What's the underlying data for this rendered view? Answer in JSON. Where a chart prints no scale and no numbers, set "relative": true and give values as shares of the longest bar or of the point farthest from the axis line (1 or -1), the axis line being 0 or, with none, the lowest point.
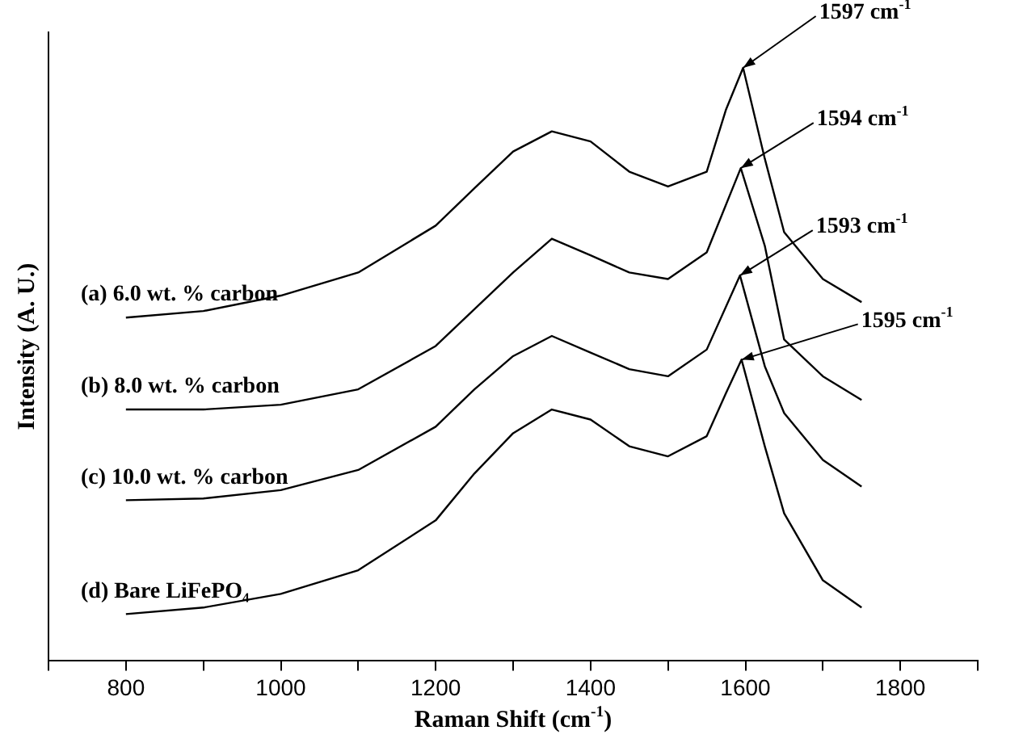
{
  "chart_data": {
    "type": "line",
    "relative": true,
    "xlabel": "Raman Shift (cm$^{-1}$)",
    "ylabel": "Intensity (A. U.)",
    "xlim": [
      700,
      1900
    ],
    "xticks": [
      {
        "value": 700,
        "label": null
      },
      800,
      {
        "value": 900,
        "label": null
      },
      1000,
      {
        "value": 1100,
        "label": null
      },
      1200,
      {
        "value": 1300,
        "label": null
      },
      1400,
      {
        "value": 1500,
        "label": null
      },
      1600,
      {
        "value": 1700,
        "label": null
      },
      1800,
      {
        "value": 1900,
        "label": null
      }
    ],
    "grid": false,
    "legend": false,
    "marker": "none",
    "series": [
      {
        "name": "(a) 6.0 wt. % carbon",
        "color": "#000000",
        "x": [
          800,
          900,
          1000,
          1100,
          1200,
          1250,
          1300,
          1350,
          1400,
          1450,
          1500,
          1550,
          1575,
          1597,
          1625,
          1650,
          1700,
          1750
        ],
        "values": [
          0.579,
          0.59,
          0.616,
          0.655,
          0.734,
          0.797,
          0.859,
          0.893,
          0.876,
          0.825,
          0.8,
          0.825,
          0.93,
          1.0,
          0.847,
          0.723,
          0.644,
          0.605
        ]
      },
      {
        "name": "(b) 8.0 wt. % carbon",
        "color": "#000000",
        "x": [
          800,
          900,
          1000,
          1100,
          1200,
          1250,
          1300,
          1350,
          1400,
          1450,
          1500,
          1550,
          1594,
          1625,
          1650,
          1700,
          1750
        ],
        "values": [
          0.424,
          0.424,
          0.432,
          0.458,
          0.531,
          0.593,
          0.655,
          0.712,
          0.684,
          0.655,
          0.644,
          0.689,
          0.831,
          0.7,
          0.542,
          0.48,
          0.44
        ]
      },
      {
        "name": "(c) 10.0 wt. % carbon",
        "color": "#000000",
        "x": [
          800,
          900,
          1000,
          1100,
          1200,
          1250,
          1300,
          1350,
          1400,
          1450,
          1500,
          1550,
          1593,
          1625,
          1650,
          1700,
          1750
        ],
        "values": [
          0.271,
          0.274,
          0.288,
          0.322,
          0.395,
          0.458,
          0.514,
          0.548,
          0.52,
          0.492,
          0.48,
          0.525,
          0.65,
          0.497,
          0.418,
          0.339,
          0.294
        ]
      },
      {
        "name": "(d) Bare LiFePO₄",
        "color": "#000000",
        "x": [
          800,
          900,
          1000,
          1100,
          1200,
          1250,
          1300,
          1350,
          1400,
          1450,
          1500,
          1550,
          1575,
          1595,
          1625,
          1650,
          1700,
          1750
        ],
        "values": [
          0.079,
          0.09,
          0.113,
          0.153,
          0.237,
          0.316,
          0.384,
          0.424,
          0.407,
          0.362,
          0.345,
          0.379,
          0.452,
          0.508,
          0.362,
          0.249,
          0.136,
          0.09
        ]
      }
    ],
    "annotations": [
      {
        "text": "1597 cm$^{-1}$",
        "x": 1597,
        "y": 1.0
      },
      {
        "text": "1594 cm$^{-1}$",
        "x": 1594,
        "y": 0.831
      },
      {
        "text": "1593 cm$^{-1}$",
        "x": 1593,
        "y": 0.65
      },
      {
        "text": "1595 cm$^{-1}$",
        "x": 1595,
        "y": 0.508
      }
    ]
  }
}
